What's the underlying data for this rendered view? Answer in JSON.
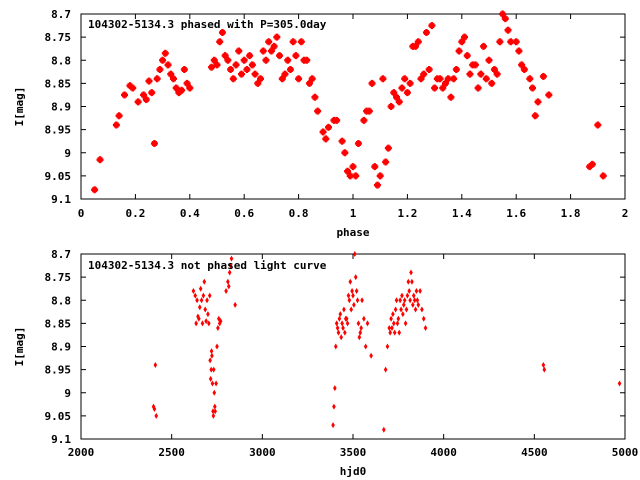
{
  "chart_data": [
    {
      "type": "scatter",
      "title": "104302-5134.3 phased with P=305.0day",
      "xlabel": "phase",
      "ylabel": "I[mag]",
      "xlim": [
        0,
        2
      ],
      "ylim": [
        8.7,
        9.1
      ],
      "y_inverted": true,
      "x_ticks": [
        "0",
        "0.2",
        "0.4",
        "0.6",
        "0.8",
        "1",
        "1.2",
        "1.4",
        "1.6",
        "1.8",
        "2"
      ],
      "y_ticks": [
        "8.7",
        "8.75",
        "8.8",
        "8.85",
        "8.9",
        "8.95",
        "9",
        "9.05",
        "9.1"
      ],
      "marker": "filled-square",
      "color": "#ff0000",
      "points": [
        [
          0.05,
          9.08
        ],
        [
          0.07,
          9.015
        ],
        [
          0.13,
          8.94
        ],
        [
          0.14,
          8.92
        ],
        [
          0.16,
          8.875
        ],
        [
          0.18,
          8.855
        ],
        [
          0.19,
          8.86
        ],
        [
          0.21,
          8.89
        ],
        [
          0.23,
          8.875
        ],
        [
          0.24,
          8.885
        ],
        [
          0.25,
          8.845
        ],
        [
          0.26,
          8.87
        ],
        [
          0.27,
          8.98
        ],
        [
          0.28,
          8.84
        ],
        [
          0.29,
          8.82
        ],
        [
          0.3,
          8.8
        ],
        [
          0.31,
          8.785
        ],
        [
          0.32,
          8.81
        ],
        [
          0.33,
          8.83
        ],
        [
          0.34,
          8.84
        ],
        [
          0.35,
          8.86
        ],
        [
          0.36,
          8.87
        ],
        [
          0.37,
          8.865
        ],
        [
          0.38,
          8.82
        ],
        [
          0.39,
          8.85
        ],
        [
          0.4,
          8.86
        ],
        [
          0.48,
          8.815
        ],
        [
          0.49,
          8.8
        ],
        [
          0.5,
          8.81
        ],
        [
          0.51,
          8.76
        ],
        [
          0.52,
          8.74
        ],
        [
          0.53,
          8.79
        ],
        [
          0.54,
          8.8
        ],
        [
          0.55,
          8.82
        ],
        [
          0.56,
          8.84
        ],
        [
          0.57,
          8.81
        ],
        [
          0.58,
          8.78
        ],
        [
          0.59,
          8.83
        ],
        [
          0.6,
          8.8
        ],
        [
          0.61,
          8.82
        ],
        [
          0.62,
          8.79
        ],
        [
          0.63,
          8.81
        ],
        [
          0.64,
          8.83
        ],
        [
          0.65,
          8.85
        ],
        [
          0.66,
          8.84
        ],
        [
          0.67,
          8.78
        ],
        [
          0.68,
          8.8
        ],
        [
          0.69,
          8.76
        ],
        [
          0.7,
          8.78
        ],
        [
          0.71,
          8.77
        ],
        [
          0.72,
          8.75
        ],
        [
          0.73,
          8.79
        ],
        [
          0.74,
          8.84
        ],
        [
          0.75,
          8.83
        ],
        [
          0.76,
          8.8
        ],
        [
          0.77,
          8.82
        ],
        [
          0.78,
          8.76
        ],
        [
          0.79,
          8.79
        ],
        [
          0.8,
          8.84
        ],
        [
          0.81,
          8.76
        ],
        [
          0.82,
          8.8
        ],
        [
          0.83,
          8.8
        ],
        [
          0.84,
          8.85
        ],
        [
          0.85,
          8.84
        ],
        [
          0.86,
          8.88
        ],
        [
          0.87,
          8.91
        ],
        [
          0.89,
          8.955
        ],
        [
          0.9,
          8.97
        ],
        [
          0.91,
          8.945
        ],
        [
          0.93,
          8.93
        ],
        [
          0.94,
          8.93
        ],
        [
          0.96,
          8.975
        ],
        [
          0.97,
          9.0
        ],
        [
          0.98,
          9.04
        ],
        [
          0.99,
          9.05
        ],
        [
          1.0,
          9.03
        ],
        [
          1.01,
          9.05
        ],
        [
          1.02,
          8.98
        ],
        [
          1.04,
          8.93
        ],
        [
          1.05,
          8.91
        ],
        [
          1.06,
          8.91
        ],
        [
          1.07,
          8.85
        ],
        [
          1.08,
          9.03
        ],
        [
          1.09,
          9.07
        ],
        [
          1.1,
          9.05
        ],
        [
          1.11,
          8.84
        ],
        [
          1.12,
          9.02
        ],
        [
          1.13,
          8.99
        ],
        [
          1.14,
          8.9
        ],
        [
          1.15,
          8.87
        ],
        [
          1.16,
          8.88
        ],
        [
          1.17,
          8.89
        ],
        [
          1.18,
          8.86
        ],
        [
          1.19,
          8.84
        ],
        [
          1.2,
          8.87
        ],
        [
          1.21,
          8.85
        ],
        [
          1.22,
          8.77
        ],
        [
          1.23,
          8.77
        ],
        [
          1.24,
          8.76
        ],
        [
          1.25,
          8.84
        ],
        [
          1.26,
          8.83
        ],
        [
          1.27,
          8.74
        ],
        [
          1.28,
          8.82
        ],
        [
          1.29,
          8.725
        ],
        [
          1.3,
          8.86
        ],
        [
          1.31,
          8.84
        ],
        [
          1.32,
          8.84
        ],
        [
          1.33,
          8.86
        ],
        [
          1.34,
          8.85
        ],
        [
          1.35,
          8.84
        ],
        [
          1.36,
          8.88
        ],
        [
          1.37,
          8.84
        ],
        [
          1.38,
          8.82
        ],
        [
          1.39,
          8.78
        ],
        [
          1.4,
          8.76
        ],
        [
          1.41,
          8.75
        ],
        [
          1.42,
          8.79
        ],
        [
          1.43,
          8.83
        ],
        [
          1.44,
          8.81
        ],
        [
          1.45,
          8.81
        ],
        [
          1.46,
          8.86
        ],
        [
          1.47,
          8.83
        ],
        [
          1.48,
          8.77
        ],
        [
          1.49,
          8.84
        ],
        [
          1.5,
          8.8
        ],
        [
          1.51,
          8.85
        ],
        [
          1.52,
          8.82
        ],
        [
          1.53,
          8.83
        ],
        [
          1.54,
          8.76
        ],
        [
          1.55,
          8.7
        ],
        [
          1.56,
          8.71
        ],
        [
          1.57,
          8.735
        ],
        [
          1.58,
          8.76
        ],
        [
          1.6,
          8.76
        ],
        [
          1.61,
          8.78
        ],
        [
          1.62,
          8.81
        ],
        [
          1.63,
          8.82
        ],
        [
          1.65,
          8.84
        ],
        [
          1.66,
          8.86
        ],
        [
          1.67,
          8.92
        ],
        [
          1.68,
          8.89
        ],
        [
          1.7,
          8.835
        ],
        [
          1.72,
          8.875
        ],
        [
          1.87,
          9.03
        ],
        [
          1.88,
          9.025
        ],
        [
          1.9,
          8.94
        ],
        [
          1.92,
          9.05
        ]
      ]
    },
    {
      "type": "scatter",
      "title": "104302-5134.3 not phased light curve",
      "xlabel": "hjd0",
      "ylabel": "I[mag]",
      "xlim": [
        2000,
        5000
      ],
      "ylim": [
        8.7,
        9.1
      ],
      "y_inverted": true,
      "x_ticks": [
        "2000",
        "2500",
        "3000",
        "3500",
        "4000",
        "4500",
        "5000"
      ],
      "y_ticks": [
        "8.7",
        "8.75",
        "8.8",
        "8.85",
        "8.9",
        "8.95",
        "9",
        "9.05",
        "9.1"
      ],
      "marker": "small-diamond",
      "color": "#ff0000",
      "points": [
        [
          2400,
          9.03
        ],
        [
          2405,
          9.035
        ],
        [
          2410,
          8.94
        ],
        [
          2415,
          9.05
        ],
        [
          2620,
          8.78
        ],
        [
          2630,
          8.79
        ],
        [
          2635,
          8.85
        ],
        [
          2640,
          8.8
        ],
        [
          2645,
          8.835
        ],
        [
          2650,
          8.84
        ],
        [
          2655,
          8.815
        ],
        [
          2660,
          8.775
        ],
        [
          2665,
          8.8
        ],
        [
          2670,
          8.85
        ],
        [
          2675,
          8.79
        ],
        [
          2680,
          8.76
        ],
        [
          2685,
          8.82
        ],
        [
          2690,
          8.845
        ],
        [
          2695,
          8.8
        ],
        [
          2700,
          8.83
        ],
        [
          2705,
          8.85
        ],
        [
          2710,
          8.79
        ],
        [
          2712,
          8.93
        ],
        [
          2715,
          8.97
        ],
        [
          2718,
          8.95
        ],
        [
          2720,
          8.91
        ],
        [
          2722,
          8.92
        ],
        [
          2725,
          8.98
        ],
        [
          2728,
          9.04
        ],
        [
          2730,
          9.05
        ],
        [
          2732,
          8.95
        ],
        [
          2735,
          9.0
        ],
        [
          2738,
          9.03
        ],
        [
          2740,
          9.04
        ],
        [
          2745,
          8.98
        ],
        [
          2750,
          8.9
        ],
        [
          2755,
          8.86
        ],
        [
          2760,
          8.84
        ],
        [
          2765,
          8.85
        ],
        [
          2770,
          8.845
        ],
        [
          2800,
          8.78
        ],
        [
          2810,
          8.76
        ],
        [
          2815,
          8.77
        ],
        [
          2820,
          8.74
        ],
        [
          2825,
          8.725
        ],
        [
          2830,
          8.71
        ],
        [
          2850,
          8.81
        ],
        [
          3390,
          9.07
        ],
        [
          3395,
          9.03
        ],
        [
          3400,
          8.99
        ],
        [
          3405,
          8.9
        ],
        [
          3410,
          8.85
        ],
        [
          3415,
          8.86
        ],
        [
          3420,
          8.87
        ],
        [
          3425,
          8.84
        ],
        [
          3430,
          8.83
        ],
        [
          3435,
          8.88
        ],
        [
          3440,
          8.85
        ],
        [
          3445,
          8.86
        ],
        [
          3450,
          8.82
        ],
        [
          3455,
          8.87
        ],
        [
          3460,
          8.84
        ],
        [
          3465,
          8.84
        ],
        [
          3470,
          8.85
        ],
        [
          3475,
          8.79
        ],
        [
          3480,
          8.8
        ],
        [
          3485,
          8.76
        ],
        [
          3490,
          8.82
        ],
        [
          3495,
          8.78
        ],
        [
          3500,
          8.79
        ],
        [
          3505,
          8.81
        ],
        [
          3510,
          8.7
        ],
        [
          3515,
          8.75
        ],
        [
          3520,
          8.78
        ],
        [
          3525,
          8.8
        ],
        [
          3530,
          8.85
        ],
        [
          3535,
          8.88
        ],
        [
          3540,
          8.87
        ],
        [
          3545,
          8.86
        ],
        [
          3550,
          8.8
        ],
        [
          3560,
          8.84
        ],
        [
          3570,
          8.9
        ],
        [
          3580,
          8.85
        ],
        [
          3600,
          8.92
        ],
        [
          3670,
          9.08
        ],
        [
          3680,
          8.95
        ],
        [
          3690,
          8.9
        ],
        [
          3700,
          8.86
        ],
        [
          3705,
          8.87
        ],
        [
          3710,
          8.84
        ],
        [
          3715,
          8.86
        ],
        [
          3720,
          8.83
        ],
        [
          3725,
          8.85
        ],
        [
          3730,
          8.87
        ],
        [
          3735,
          8.82
        ],
        [
          3740,
          8.8
        ],
        [
          3745,
          8.85
        ],
        [
          3750,
          8.84
        ],
        [
          3755,
          8.87
        ],
        [
          3760,
          8.8
        ],
        [
          3765,
          8.82
        ],
        [
          3770,
          8.79
        ],
        [
          3775,
          8.83
        ],
        [
          3780,
          8.81
        ],
        [
          3785,
          8.8
        ],
        [
          3790,
          8.85
        ],
        [
          3795,
          8.82
        ],
        [
          3800,
          8.79
        ],
        [
          3805,
          8.76
        ],
        [
          3810,
          8.78
        ],
        [
          3815,
          8.8
        ],
        [
          3820,
          8.74
        ],
        [
          3825,
          8.76
        ],
        [
          3830,
          8.81
        ],
        [
          3835,
          8.79
        ],
        [
          3840,
          8.8
        ],
        [
          3845,
          8.82
        ],
        [
          3850,
          8.78
        ],
        [
          3855,
          8.8
        ],
        [
          3860,
          8.81
        ],
        [
          3870,
          8.78
        ],
        [
          3880,
          8.82
        ],
        [
          3890,
          8.84
        ],
        [
          3900,
          8.86
        ],
        [
          4550,
          8.94
        ],
        [
          4555,
          8.95
        ],
        [
          4970,
          8.98
        ]
      ]
    }
  ]
}
